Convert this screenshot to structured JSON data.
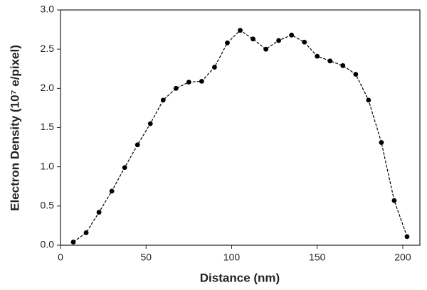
{
  "chart_data": {
    "type": "line",
    "xlabel": "Distance (nm)",
    "ylabel": "Electron Density (10⁷ e/pixel)",
    "x": [
      7.5,
      15,
      22.5,
      30,
      37.5,
      45,
      52.5,
      60,
      67.5,
      75,
      82.5,
      90,
      97.5,
      105,
      112.5,
      120,
      127.5,
      135,
      142.5,
      150,
      157.5,
      165,
      172.5,
      180,
      187.5,
      195,
      202.5
    ],
    "series": [
      {
        "color": "#000000",
        "values": [
          0.04,
          0.16,
          0.42,
          0.69,
          0.99,
          1.28,
          1.55,
          1.85,
          2.0,
          2.08,
          2.09,
          2.27,
          2.58,
          2.74,
          2.63,
          2.5,
          2.61,
          2.68,
          2.59,
          2.41,
          2.35,
          2.29,
          2.18,
          1.85,
          1.31,
          0.57,
          0.11
        ]
      }
    ],
    "xlim": [
      0,
      210
    ],
    "xticks": [
      0,
      50,
      100,
      150,
      200
    ],
    "ylim": [
      0,
      3
    ],
    "yticks": [
      {
        "value": 0,
        "label": "0.0"
      },
      {
        "value": 0.5,
        "label": "0.5"
      },
      {
        "value": 1,
        "label": "1.0"
      },
      {
        "value": 1.5,
        "label": "1.5"
      },
      {
        "value": 2,
        "label": "2.0"
      },
      {
        "value": 2.5,
        "label": "2.5"
      },
      {
        "value": 3,
        "label": "3.0"
      }
    ],
    "grid": false
  }
}
